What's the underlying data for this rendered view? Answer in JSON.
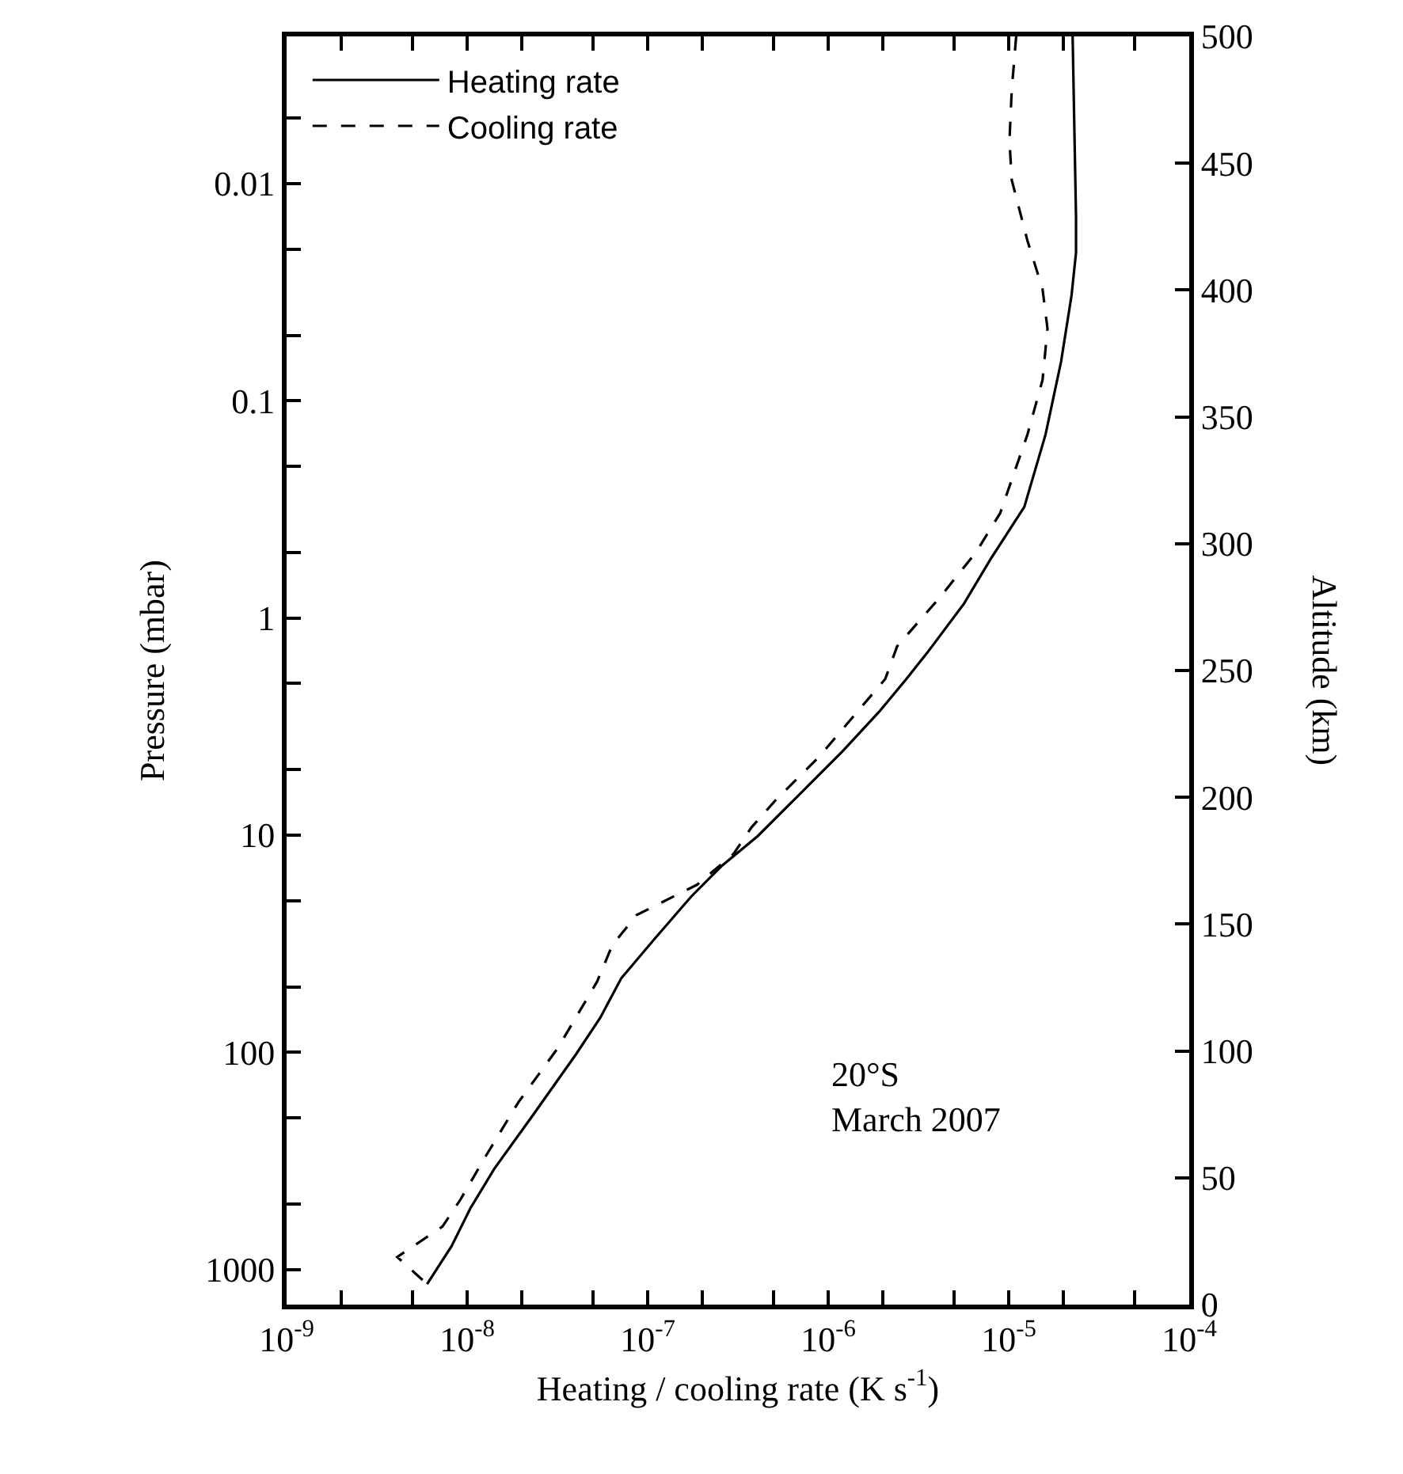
{
  "chart_data": {
    "type": "line",
    "xlabel": "Heating / cooling rate (K s$^{-1}$)",
    "ylabel": "Pressure (mbar)",
    "y2label": "Altitude (km)",
    "annotations": [
      "20°S\nMarch 2007"
    ],
    "log": "xy",
    "legend": "top left",
    "marker": "none",
    "xlim": [
      1e-09,
      0.0001
    ],
    "xticks": [
      {
        "value": 1e-09,
        "label": "10$^{-9}$"
      },
      {
        "value": 2e-09,
        "label": null
      },
      {
        "value": 5e-09,
        "label": null
      },
      {
        "value": 1e-08,
        "label": "10$^{-8}$"
      },
      {
        "value": 2e-08,
        "label": null
      },
      {
        "value": 5e-08,
        "label": null
      },
      {
        "value": 1e-07,
        "label": "10$^{-7}$"
      },
      {
        "value": 2e-07,
        "label": null
      },
      {
        "value": 5e-07,
        "label": null
      },
      {
        "value": 1e-06,
        "label": "10$^{-6}$"
      },
      {
        "value": 2e-06,
        "label": null
      },
      {
        "value": 5e-06,
        "label": null
      },
      {
        "value": 1e-05,
        "label": "10$^{-5}$"
      },
      {
        "value": 2e-05,
        "label": null
      },
      {
        "value": 5e-05,
        "label": null
      },
      {
        "value": 0.0001,
        "label": "10$^{-4}$"
      }
    ],
    "ylim": [
      1450,
      0.0021
    ],
    "yticks": [
      {
        "value": 0.005,
        "label": null
      },
      0.01,
      {
        "value": 0.02,
        "label": null
      },
      {
        "value": 0.05,
        "label": null
      },
      0.1,
      {
        "value": 0.2,
        "label": null
      },
      {
        "value": 0.5,
        "label": null
      },
      1,
      {
        "value": 2,
        "label": null
      },
      {
        "value": 5,
        "label": null
      },
      10,
      {
        "value": 20,
        "label": null
      },
      {
        "value": 50,
        "label": null
      },
      100,
      {
        "value": 200,
        "label": null
      },
      {
        "value": 500,
        "label": null
      },
      1000
    ],
    "y2lim": [
      0,
      500
    ],
    "y2ticks": [
      0,
      50,
      100,
      150,
      200,
      250,
      300,
      350,
      400,
      450,
      500
    ],
    "series": [
      {
        "name": "Heating rate",
        "color": "#000000",
        "line_style": "solid",
        "x": [
          2.26e-05,
          2.36e-05,
          2.36e-05,
          2.23e-05,
          1.95e-05,
          1.6e-05,
          1.22e-05,
          7.98e-06,
          5.64e-06,
          3.55e-06,
          2.71e-06,
          1.91e-06,
          1.2e-06,
          7e-07,
          4.07e-07,
          2.56e-07,
          1.74e-07,
          1.09e-07,
          7.14e-08,
          5.46e-08,
          4.01e-08,
          2.33e-08,
          1.41e-08,
          1.04e-08,
          8.2e-09,
          6e-09
        ],
        "values": [
          0.0021,
          0.0142,
          0.0208,
          0.0326,
          0.0661,
          0.143,
          0.308,
          0.532,
          0.861,
          1.44,
          1.91,
          2.71,
          4.11,
          6.44,
          10.1,
          13.9,
          19.2,
          30.1,
          45.6,
          69.3,
          102,
          193,
          345,
          524,
          780,
          1167
        ]
      },
      {
        "name": "Cooling rate",
        "color": "#000000",
        "line_style": "dashed",
        "x": [
          1.1e-05,
          1.04e-05,
          1.01e-05,
          1.04e-05,
          1.27e-05,
          1.54e-05,
          1.64e-05,
          1.54e-05,
          1.27e-05,
          8.97e-06,
          6.58e-06,
          4.14e-06,
          2.41e-06,
          2.07e-06,
          8.83e-07,
          5.14e-07,
          3.77e-07,
          2.99e-07,
          1.88e-07,
          8.7e-08,
          6.37e-08,
          5.25e-08,
          3.18e-08,
          1.92e-08,
          1.26e-08,
          9.2e-09,
          7.3e-09,
          4.1e-09,
          6e-09
        ],
        "values": [
          0.0021,
          0.00368,
          0.00635,
          0.00964,
          0.0183,
          0.0306,
          0.0465,
          0.0802,
          0.143,
          0.329,
          0.499,
          0.807,
          1.35,
          1.91,
          4.39,
          6.87,
          9.18,
          12.2,
          16.9,
          23.3,
          32.1,
          47.2,
          95.5,
          170,
          303,
          475,
          634,
          875,
          1167
        ]
      }
    ]
  }
}
